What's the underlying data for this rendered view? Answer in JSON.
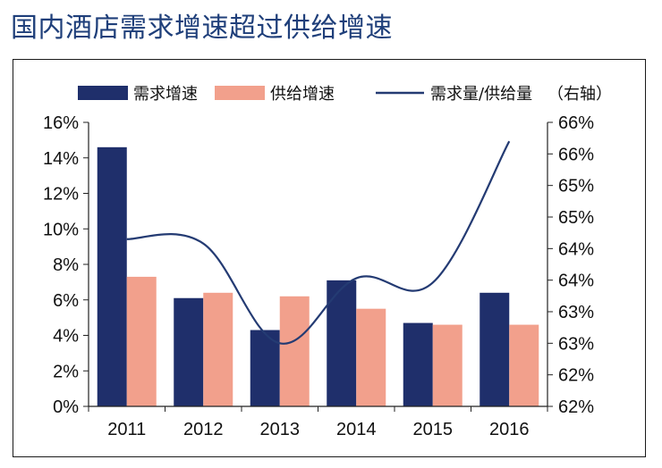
{
  "page": {
    "title": "国内酒店需求增速超过供给增速"
  },
  "colors": {
    "demand": "#1f2f6b",
    "supply": "#f2a08c",
    "ratio": "#243b73",
    "axis": "#222222"
  },
  "chart_data": {
    "type": "bar",
    "title": "国内酒店需求增速超过供给增速",
    "categories": [
      "2011",
      "2012",
      "2013",
      "2014",
      "2015",
      "2016"
    ],
    "series": [
      {
        "name": "需求增速",
        "type": "bar",
        "axis": "left",
        "values": [
          14.6,
          6.1,
          4.3,
          7.1,
          4.7,
          6.4
        ]
      },
      {
        "name": "供给增速",
        "type": "bar",
        "axis": "left",
        "values": [
          7.3,
          6.4,
          6.2,
          5.5,
          4.6,
          4.6
        ]
      },
      {
        "name": "需求量/供给量",
        "type": "line",
        "axis": "right",
        "values": [
          64.65,
          64.58,
          63.0,
          64.03,
          63.96,
          66.2
        ]
      }
    ],
    "legend": {
      "labels": [
        "需求增速",
        "供给增速",
        "需求量/供给量",
        "（右轴）"
      ]
    },
    "left_axis": {
      "ticks": [
        "0%",
        "2%",
        "4%",
        "6%",
        "8%",
        "10%",
        "12%",
        "14%",
        "16%"
      ],
      "min": 0,
      "max": 16
    },
    "right_axis": {
      "ticks": [
        "62%",
        "62%",
        "63%",
        "63%",
        "64%",
        "64%",
        "65%",
        "65%",
        "66%",
        "66%"
      ],
      "min": 62,
      "max": 66.5
    }
  }
}
